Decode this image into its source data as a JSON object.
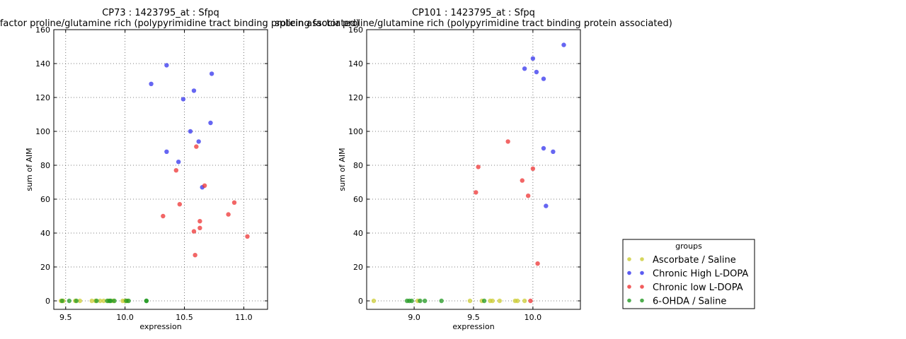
{
  "colors": {
    "Ascorbate / Saline": "#cccc33",
    "Chronic High L-DOPA": "#3333ee",
    "Chronic low L-DOPA": "#ee3333",
    "6-OHDA / Saline": "#229922"
  },
  "legend": {
    "title": "groups",
    "entries": [
      "Ascorbate / Saline",
      "Chronic High L-DOPA",
      "Chronic low L-DOPA",
      "6-OHDA / Saline"
    ]
  },
  "chart_data": [
    {
      "type": "scatter",
      "title": "CP73 : 1423795_at : Sfpq",
      "subtitle": "splicing factor proline/glutamine rich (polypyrimidine tract binding protein associated)",
      "xlabel": "expression",
      "ylabel": "sum of AIM",
      "xlim": [
        9.4,
        11.2
      ],
      "ylim": [
        -5,
        160
      ],
      "xticks": [
        "9.5",
        "10.0",
        "10.5",
        "11.0"
      ],
      "xtick_values": [
        9.5,
        10.0,
        10.5,
        11.0
      ],
      "yticks": [
        "0",
        "20",
        "40",
        "60",
        "80",
        "100",
        "120",
        "140",
        "160"
      ],
      "ytick_values": [
        0,
        20,
        40,
        60,
        80,
        100,
        120,
        140,
        160
      ],
      "grid": true,
      "series": [
        {
          "name": "Ascorbate / Saline",
          "x": [
            9.46,
            9.48,
            9.58,
            9.62,
            9.72,
            9.75,
            9.79,
            9.82,
            9.86,
            9.9,
            9.98,
            10.0,
            10.02
          ],
          "y": [
            0,
            0,
            0,
            0,
            0,
            0,
            0,
            0,
            0,
            0,
            0,
            0,
            0
          ]
        },
        {
          "name": "Chronic High L-DOPA",
          "x": [
            10.22,
            10.35,
            10.35,
            10.45,
            10.49,
            10.55,
            10.58,
            10.62,
            10.65,
            10.72,
            10.73
          ],
          "y": [
            128,
            139,
            88,
            82,
            119,
            100,
            124,
            94,
            67,
            105,
            134
          ]
        },
        {
          "name": "Chronic low L-DOPA",
          "x": [
            10.32,
            10.43,
            10.46,
            10.58,
            10.59,
            10.6,
            10.63,
            10.63,
            10.67,
            10.87,
            10.92,
            11.03
          ],
          "y": [
            50,
            77,
            57,
            41,
            27,
            91,
            47,
            43,
            68,
            51,
            58,
            38
          ]
        },
        {
          "name": "6-OHDA / Saline",
          "x": [
            9.47,
            9.53,
            9.59,
            9.76,
            9.85,
            9.87,
            9.88,
            9.91,
            10.01,
            10.03,
            10.18,
            10.18
          ],
          "y": [
            0,
            0,
            0,
            0,
            0,
            0,
            0,
            0,
            0,
            0,
            0,
            0
          ]
        }
      ]
    },
    {
      "type": "scatter",
      "title": "CP101 : 1423795_at : Sfpq",
      "subtitle": "splicing factor proline/glutamine rich (polypyrimidine tract binding protein associated)",
      "xlabel": "expression",
      "ylabel": "sum of AIM",
      "xlim": [
        8.6,
        10.4
      ],
      "ylim": [
        -5,
        160
      ],
      "xticks": [
        "9.0",
        "9.5",
        "10.0"
      ],
      "xtick_values": [
        9.0,
        9.5,
        10.0
      ],
      "yticks": [
        "0",
        "20",
        "40",
        "60",
        "80",
        "100",
        "120",
        "140",
        "160"
      ],
      "ytick_values": [
        0,
        20,
        40,
        60,
        80,
        100,
        120,
        140,
        160
      ],
      "grid": true,
      "series": [
        {
          "name": "Ascorbate / Saline",
          "x": [
            8.66,
            9.03,
            9.47,
            9.57,
            9.64,
            9.66,
            9.72,
            9.85,
            9.87,
            9.93
          ],
          "y": [
            0,
            0,
            0,
            0,
            0,
            0,
            0,
            0,
            0,
            0
          ]
        },
        {
          "name": "Chronic High L-DOPA",
          "x": [
            9.93,
            10.0,
            10.03,
            10.09,
            10.09,
            10.11,
            10.17,
            10.26
          ],
          "y": [
            137,
            143,
            135,
            131,
            90,
            56,
            88,
            151
          ]
        },
        {
          "name": "Chronic low L-DOPA",
          "x": [
            9.52,
            9.54,
            9.79,
            9.91,
            9.96,
            9.98,
            10.0,
            10.04
          ],
          "y": [
            64,
            79,
            94,
            71,
            62,
            0,
            78,
            22
          ]
        },
        {
          "name": "6-OHDA / Saline",
          "x": [
            8.94,
            8.96,
            8.98,
            9.05,
            9.09,
            9.23,
            9.59
          ],
          "y": [
            0,
            0,
            0,
            0,
            0,
            0,
            0
          ]
        }
      ]
    }
  ]
}
